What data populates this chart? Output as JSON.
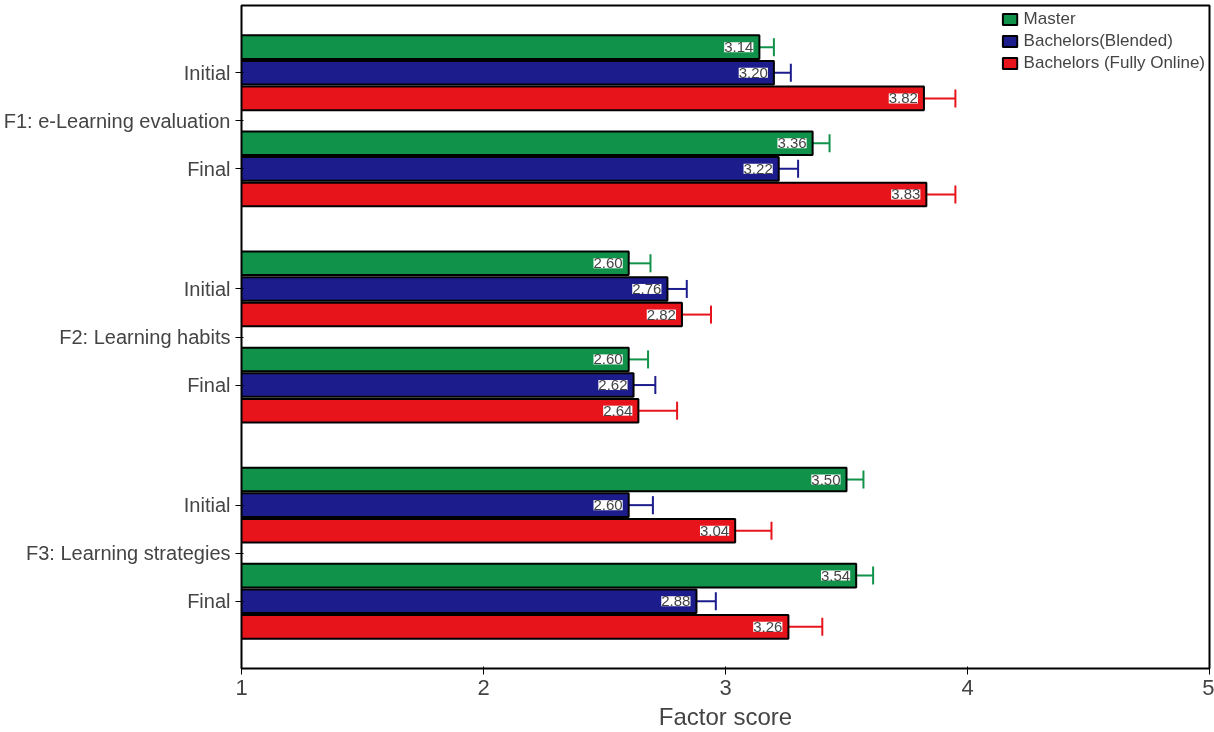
{
  "chart_data": {
    "type": "bar",
    "orientation": "horizontal",
    "xlabel": "Factor score",
    "categories": [
      "Initial",
      "Final",
      "Initial",
      "Final",
      "Initial",
      "Final"
    ],
    "annotations": [
      "F1: e-Learning evaluation",
      "F2: Learning habits",
      "F3: Learning strategies"
    ],
    "series": [
      {
        "name": "Master",
        "color": "#10924a",
        "values": [
          3.14,
          3.36,
          2.6,
          2.6,
          3.5,
          3.54
        ],
        "value_labels": [
          "3.14",
          "3.36",
          "2.60",
          "2.60",
          "3.50",
          "3.54"
        ],
        "errors": [
          [
            3.14,
            3.2
          ],
          [
            3.36,
            3.43
          ],
          [
            2.6,
            2.69
          ],
          [
            2.6,
            2.68
          ],
          [
            3.5,
            3.57
          ],
          [
            3.54,
            3.61
          ]
        ]
      },
      {
        "name": "Bachelors(Blended)",
        "color": "#1c1c8c",
        "values": [
          3.2,
          3.22,
          2.76,
          2.62,
          2.6,
          2.88
        ],
        "value_labels": [
          "3.20",
          "3.22",
          "2.76",
          "2.62",
          "2.60",
          "2.88"
        ],
        "errors": [
          [
            3.2,
            3.27
          ],
          [
            3.22,
            3.3
          ],
          [
            2.76,
            2.84
          ],
          [
            2.62,
            2.71
          ],
          [
            2.6,
            2.7
          ],
          [
            2.88,
            2.96
          ]
        ]
      },
      {
        "name": "Bachelors (Fully Online)",
        "color": "#e8141c",
        "values": [
          3.82,
          3.83,
          2.82,
          2.64,
          3.04,
          3.26
        ],
        "value_labels": [
          "3.82",
          "3.83",
          "2.82",
          "2.64",
          "3.04",
          "3.26"
        ],
        "errors": [
          [
            3.82,
            3.95
          ],
          [
            3.83,
            3.95
          ],
          [
            2.82,
            2.94
          ],
          [
            2.64,
            2.8
          ],
          [
            3.04,
            3.19
          ],
          [
            3.26,
            3.4
          ]
        ]
      }
    ],
    "xlim": [
      1,
      5
    ],
    "xticks": [
      1,
      2,
      3,
      4,
      5
    ],
    "legend": "top right",
    "grid": false
  }
}
